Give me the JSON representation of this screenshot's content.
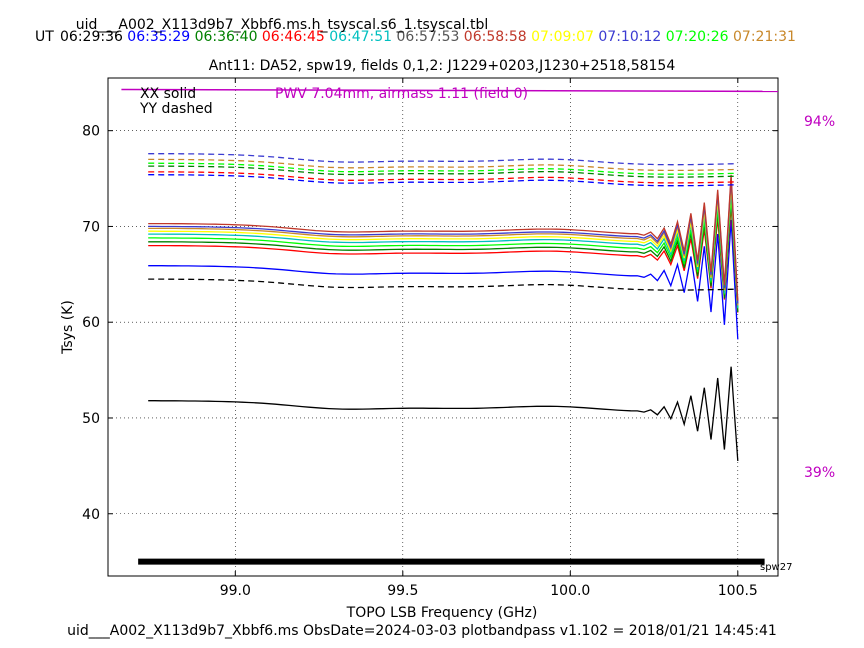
{
  "header": {
    "file_title": "uid___A002_X113d9b7_Xbbf6.ms.h_tsyscal.s6_1.tsyscal.tbl",
    "ut_label": "UT",
    "times": [
      {
        "text": "06:29:36",
        "color": "#000000"
      },
      {
        "text": "06:35:29",
        "color": "#0000ff"
      },
      {
        "text": "06:36:40",
        "color": "#008000"
      },
      {
        "text": "06:46:45",
        "color": "#ff0000"
      },
      {
        "text": "06:47:51",
        "color": "#00bfbf"
      },
      {
        "text": "06:57:53",
        "color": "#555555"
      },
      {
        "text": "06:58:58",
        "color": "#c0392b"
      },
      {
        "text": "07:09:07",
        "color": "#ffff00"
      },
      {
        "text": "07:10:12",
        "color": "#3b3bd1"
      },
      {
        "text": "07:20:26",
        "color": "#00ff00"
      },
      {
        "text": "07:21:31",
        "color": "#c8882a"
      }
    ],
    "subtitle": "Ant11: DA52,  spw19,  fields 0,1,2: J1229+0203,J1230+2518,58154"
  },
  "legend": {
    "xx": "XX solid",
    "yy": "YY dashed",
    "pwv": "PWV 7.04mm, airmass 1.11 (field 0)"
  },
  "right_labels": {
    "top": "94%",
    "bottom": "39%"
  },
  "spw_label": "spw27",
  "footer": "uid___A002_X113d9b7_Xbbf6.ms  ObsDate=2024-03-03   plotbandpass v1.102 = 2018/01/21 14:45:41",
  "colors": {
    "transmission": "#c000c0",
    "bandbar": "#000000"
  },
  "chart_data": {
    "type": "line",
    "title": "Ant11: DA52,  spw19,  fields 0,1,2: J1229+0203,J1230+2518,58154",
    "xlabel": "TOPO LSB Frequency (GHz)",
    "ylabel": "Tsys (K)",
    "xlim": [
      98.62,
      100.62
    ],
    "ylim": [
      33.5,
      85.5
    ],
    "xticks": [
      99.0,
      99.5,
      100.0,
      100.5
    ],
    "xtick_labels": [
      "99.0",
      "99.5",
      "100.0",
      "100.5"
    ],
    "yticks": [
      40,
      50,
      60,
      70,
      80
    ],
    "ytick_labels": [
      "40",
      "50",
      "60",
      "70",
      "80"
    ],
    "grid": true,
    "x_start": 98.74,
    "x_end": 100.5,
    "x_step": 0.04,
    "ripple_start": 100.18,
    "series": [
      {
        "pol": "XX",
        "color": "#000000",
        "level": 51.2,
        "amp": 1.5
      },
      {
        "pol": "XX",
        "color": "#0000ff",
        "level": 65.3,
        "amp": 1.9
      },
      {
        "pol": "XX",
        "color": "#ff0000",
        "level": 67.4,
        "amp": 1.7
      },
      {
        "pol": "XX",
        "color": "#008000",
        "level": 67.8,
        "amp": 1.8
      },
      {
        "pol": "XX",
        "color": "#00ff00",
        "level": 68.2,
        "amp": 1.8
      },
      {
        "pol": "XX",
        "color": "#00bfbf",
        "level": 68.6,
        "amp": 1.9
      },
      {
        "pol": "XX",
        "color": "#ffff00",
        "level": 68.9,
        "amp": 1.9
      },
      {
        "pol": "XX",
        "color": "#c8882a",
        "level": 69.2,
        "amp": 2.0
      },
      {
        "pol": "XX",
        "color": "#3b3bd1",
        "level": 69.4,
        "amp": 2.0
      },
      {
        "pol": "XX",
        "color": "#c0392b",
        "level": 69.7,
        "amp": 2.0
      },
      {
        "pol": "YY",
        "color": "#000000",
        "level": 63.9,
        "amp": 0.0
      },
      {
        "pol": "YY",
        "color": "#0000ff",
        "level": 74.8,
        "amp": 0.0
      },
      {
        "pol": "YY",
        "color": "#ff0000",
        "level": 75.1,
        "amp": 0.0
      },
      {
        "pol": "YY",
        "color": "#008000",
        "level": 75.7,
        "amp": 0.0
      },
      {
        "pol": "YY",
        "color": "#00ff00",
        "level": 76.0,
        "amp": 0.0
      },
      {
        "pol": "YY",
        "color": "#c8882a",
        "level": 76.4,
        "amp": 0.0
      },
      {
        "pol": "YY",
        "color": "#3b3bd1",
        "level": 77.0,
        "amp": 0.0
      }
    ],
    "transmission": {
      "x": [
        98.66,
        100.62
      ],
      "y": [
        84.3,
        84.1
      ],
      "label_top": "94%",
      "label_bottom": "39%"
    },
    "band_bar": {
      "x": [
        98.71,
        100.58
      ],
      "y": 35.0,
      "label": "spw27"
    }
  }
}
